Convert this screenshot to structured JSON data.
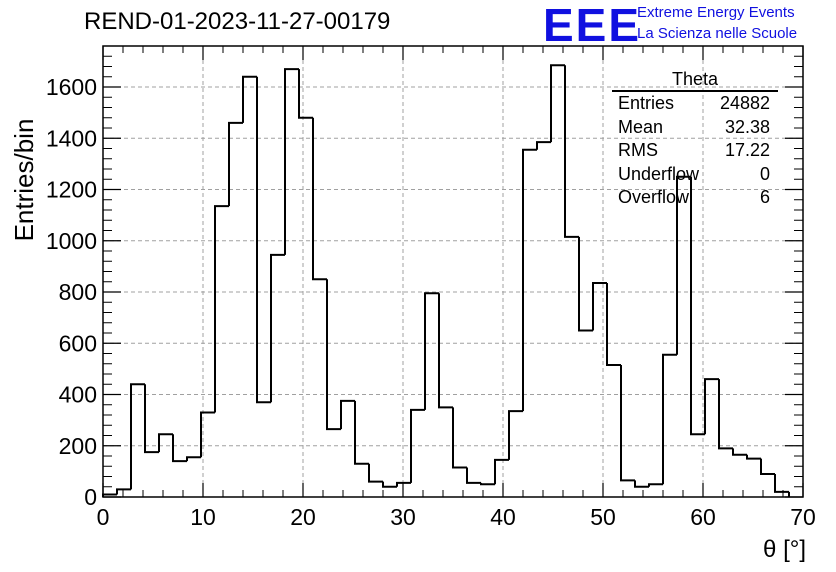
{
  "header": {
    "title": "REND-01-2023-11-27-00179",
    "logo_text": "EEE",
    "logo_line1": "Extreme Energy Events",
    "logo_line2": "La Scienza nelle Scuole"
  },
  "stats_box": {
    "title": "Theta",
    "rows": [
      {
        "key": "Entries",
        "value": "24882"
      },
      {
        "key": "Mean",
        "value": "32.38"
      },
      {
        "key": "RMS",
        "value": "17.22"
      },
      {
        "key": "Underflow",
        "value": "0"
      },
      {
        "key": "Overflow",
        "value": "6"
      }
    ]
  },
  "colors": {
    "line": "#000000",
    "grid": "#a0a0a0",
    "logo": "#1010e0"
  },
  "chart_data": {
    "type": "bar",
    "style": "step-histogram",
    "bin_width": 1.4,
    "x_start": 0,
    "values": [
      10,
      30,
      440,
      175,
      245,
      140,
      155,
      330,
      1135,
      1460,
      1640,
      370,
      945,
      1670,
      1480,
      850,
      265,
      375,
      130,
      60,
      40,
      55,
      340,
      795,
      350,
      115,
      55,
      50,
      145,
      335,
      1355,
      1385,
      1685,
      1015,
      650,
      835,
      515,
      65,
      40,
      50,
      555,
      1250,
      245,
      460,
      190,
      165,
      150,
      90,
      20
    ],
    "xlabel": "θ [°]",
    "ylabel": "Entries/bin",
    "xlim": [
      0,
      70
    ],
    "ylim": [
      0,
      1760
    ],
    "x_ticks": [
      0,
      10,
      20,
      30,
      40,
      50,
      60,
      70
    ],
    "y_ticks": [
      0,
      200,
      400,
      600,
      800,
      1000,
      1200,
      1400,
      1600
    ],
    "grid": true
  }
}
